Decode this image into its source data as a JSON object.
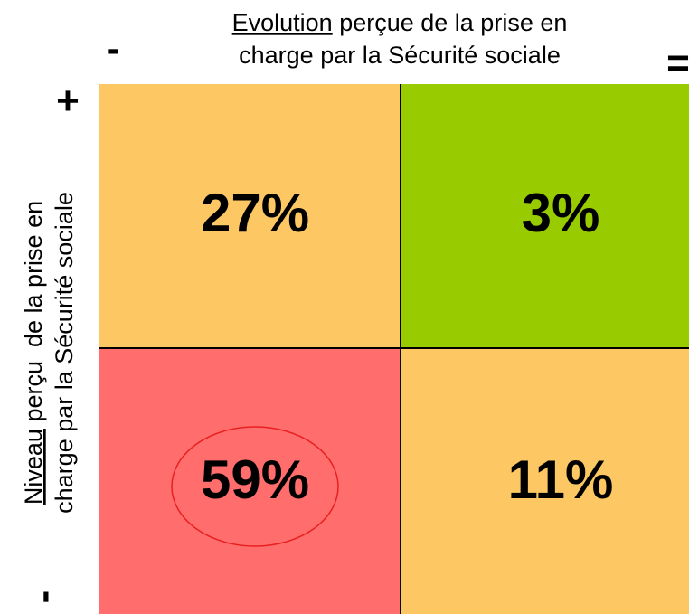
{
  "x_axis": {
    "underlined": "Evolution",
    "rest": " perçue de la prise en",
    "line2": "charge par la Sécurité sociale",
    "low": "-",
    "high": "="
  },
  "y_axis": {
    "underlined": "Niveau",
    "rest": " perçu  de la prise en",
    "line2": "charge par la Sécurité sociale",
    "high": "+",
    "low": "-"
  },
  "cells": {
    "top_left": "27%",
    "top_right": "3%",
    "bottom_left": "59%",
    "bottom_right": "11%"
  }
}
